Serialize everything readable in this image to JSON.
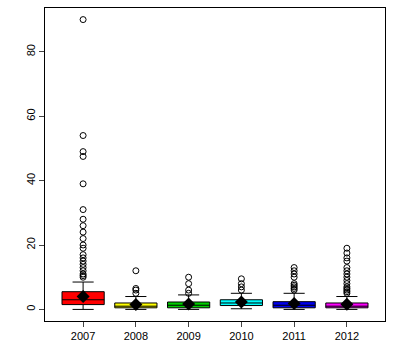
{
  "chart_data": {
    "type": "box",
    "categories": [
      "2007",
      "2008",
      "2009",
      "2010",
      "2011",
      "2012"
    ],
    "colors": [
      "#ff0000",
      "#ffff00",
      "#00cd00",
      "#00ffff",
      "#0000ee",
      "#ff00ff"
    ],
    "boxes": [
      {
        "low": 0,
        "q1": 1.5,
        "median": 3,
        "q3": 5.5,
        "high": 8.5,
        "mean": 4,
        "outliers": [
          90,
          54,
          49,
          47.5,
          39,
          31,
          28,
          26,
          24,
          22,
          20,
          19,
          17,
          16,
          15,
          14,
          13,
          12,
          11,
          10.5,
          10
        ]
      },
      {
        "low": 0,
        "q1": 0.5,
        "median": 1,
        "q3": 2,
        "high": 4,
        "mean": 1.5,
        "outliers": [
          5,
          6,
          6.5,
          12
        ]
      },
      {
        "low": 0,
        "q1": 0.5,
        "median": 1.3,
        "q3": 2.3,
        "high": 4.5,
        "mean": 1.7,
        "outliers": [
          5,
          6,
          8,
          10
        ]
      },
      {
        "low": 0.2,
        "q1": 1.2,
        "median": 2,
        "q3": 3,
        "high": 5,
        "mean": 2.3,
        "outliers": [
          6,
          7,
          8,
          9.5
        ]
      },
      {
        "low": 0,
        "q1": 0.5,
        "median": 1.3,
        "q3": 2.4,
        "high": 5,
        "mean": 1.8,
        "outliers": [
          6,
          6.5,
          7,
          7.5,
          8,
          10,
          11,
          12,
          13
        ]
      },
      {
        "low": 0,
        "q1": 0.5,
        "median": 1,
        "q3": 2,
        "high": 4,
        "mean": 1.6,
        "outliers": [
          5,
          5.5,
          6,
          6.5,
          7,
          8,
          9,
          10,
          11,
          12,
          13,
          15,
          16,
          17.5,
          19
        ]
      }
    ],
    "ylim": [
      -3.6,
      93.6
    ],
    "yticks": [
      0,
      20,
      40,
      60,
      80
    ],
    "grid": false
  }
}
